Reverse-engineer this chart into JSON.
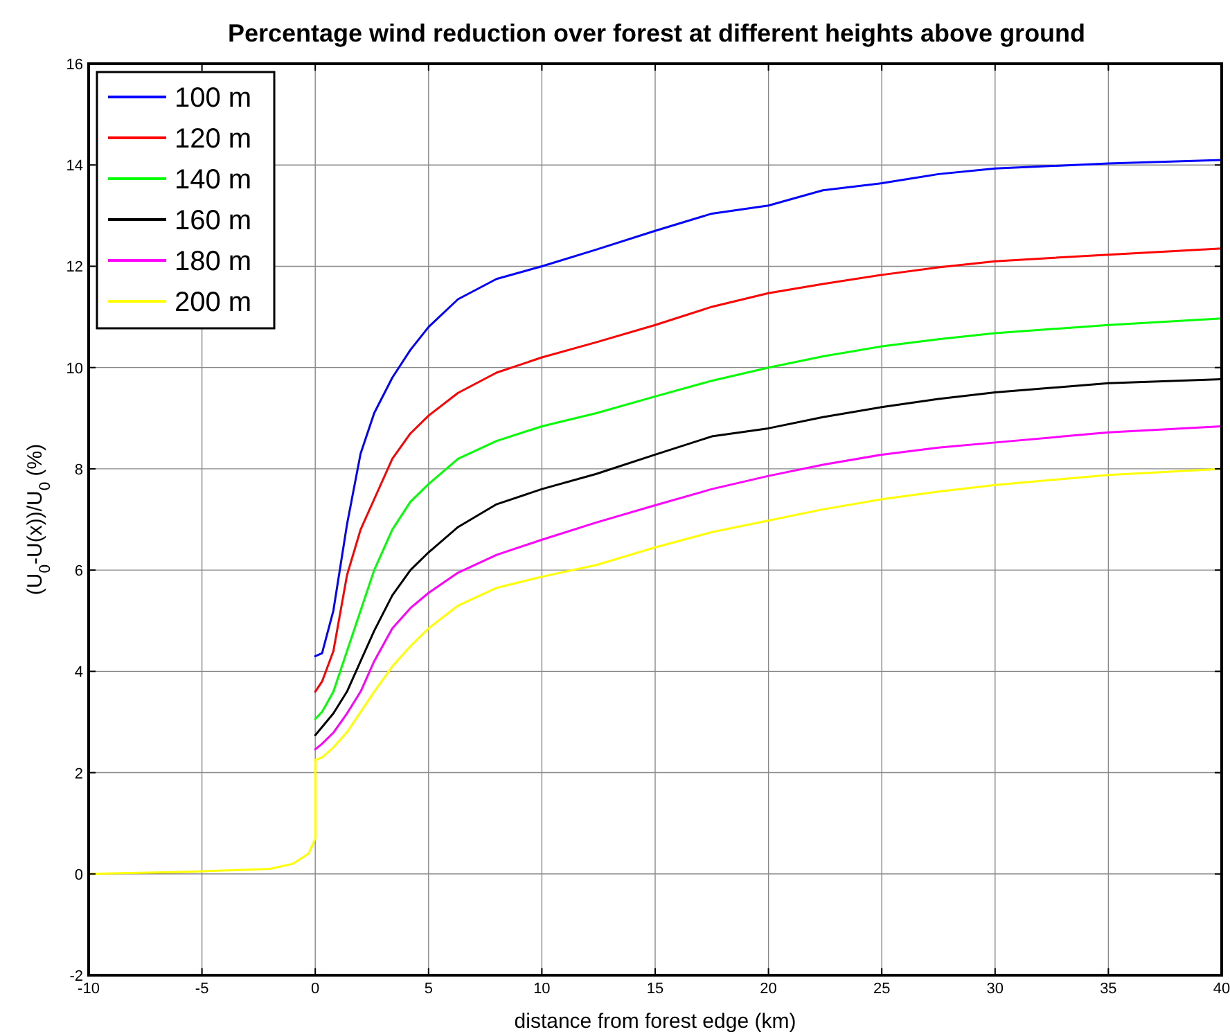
{
  "chart_data": {
    "type": "line",
    "title": "Percentage wind reduction over forest at different heights above ground",
    "xlabel": "distance from forest edge (km)",
    "ylabel": "(U$_{0}$-U(x))/U$_{0}$ (%)",
    "xlim": [
      -10,
      40
    ],
    "ylim": [
      -2,
      16
    ],
    "xticks": [
      -10,
      -5,
      0,
      5,
      10,
      15,
      20,
      25,
      30,
      35,
      40
    ],
    "yticks": [
      -2,
      0,
      2,
      4,
      6,
      8,
      10,
      12,
      14,
      16
    ],
    "grid": true,
    "legend": "top left",
    "marker": "none",
    "line_style": "solid",
    "x": [
      -10,
      -5,
      -2,
      -1,
      -0.3,
      0,
      0,
      0.3,
      0.8,
      1.4,
      2,
      2.6,
      3.4,
      4.2,
      5,
      6.3,
      8,
      10,
      12.4,
      15,
      17.5,
      20,
      22.4,
      25,
      27.5,
      30,
      35,
      40
    ],
    "series": [
      {
        "name": "100 m",
        "color": "#0000ff",
        "values": [
          null,
          null,
          null,
          null,
          null,
          null,
          4.3,
          4.36,
          5.2,
          6.9,
          8.3,
          9.1,
          9.8,
          10.35,
          10.8,
          11.35,
          11.75,
          12.0,
          12.33,
          12.7,
          13.04,
          13.2,
          13.5,
          13.64,
          13.82,
          13.93,
          14.03,
          14.1
        ]
      },
      {
        "name": "120 m",
        "color": "#ff0000",
        "values": [
          null,
          null,
          null,
          null,
          null,
          null,
          3.6,
          3.8,
          4.4,
          5.9,
          6.8,
          7.4,
          8.2,
          8.7,
          9.05,
          9.5,
          9.9,
          10.2,
          10.5,
          10.84,
          11.2,
          11.47,
          11.65,
          11.83,
          11.98,
          12.1,
          12.23,
          12.35
        ]
      },
      {
        "name": "140 m",
        "color": "#00ff00",
        "values": [
          null,
          null,
          null,
          null,
          null,
          null,
          3.06,
          3.2,
          3.6,
          4.4,
          5.2,
          6.0,
          6.8,
          7.35,
          7.7,
          8.2,
          8.55,
          8.84,
          9.1,
          9.43,
          9.74,
          10.0,
          10.22,
          10.42,
          10.56,
          10.68,
          10.84,
          10.97
        ]
      },
      {
        "name": "160 m",
        "color": "#000000",
        "values": [
          null,
          null,
          null,
          null,
          null,
          null,
          2.74,
          2.9,
          3.17,
          3.6,
          4.2,
          4.8,
          5.5,
          6.0,
          6.35,
          6.85,
          7.3,
          7.6,
          7.9,
          8.28,
          8.64,
          8.8,
          9.02,
          9.22,
          9.38,
          9.51,
          9.69,
          9.77
        ]
      },
      {
        "name": "180 m",
        "color": "#ff00ff",
        "values": [
          null,
          null,
          null,
          null,
          null,
          null,
          2.46,
          2.57,
          2.79,
          3.17,
          3.6,
          4.2,
          4.85,
          5.25,
          5.55,
          5.95,
          6.3,
          6.6,
          6.94,
          7.28,
          7.6,
          7.86,
          8.08,
          8.28,
          8.42,
          8.52,
          8.72,
          8.84
        ]
      },
      {
        "name": "200 m",
        "color": "#ffff00",
        "values": [
          0,
          0.05,
          0.1,
          0.2,
          0.4,
          0.7,
          2.25,
          2.3,
          2.5,
          2.8,
          3.2,
          3.6,
          4.1,
          4.5,
          4.85,
          5.3,
          5.65,
          5.87,
          6.1,
          6.45,
          6.75,
          6.98,
          7.2,
          7.4,
          7.55,
          7.68,
          7.88,
          8.0
        ]
      }
    ]
  }
}
